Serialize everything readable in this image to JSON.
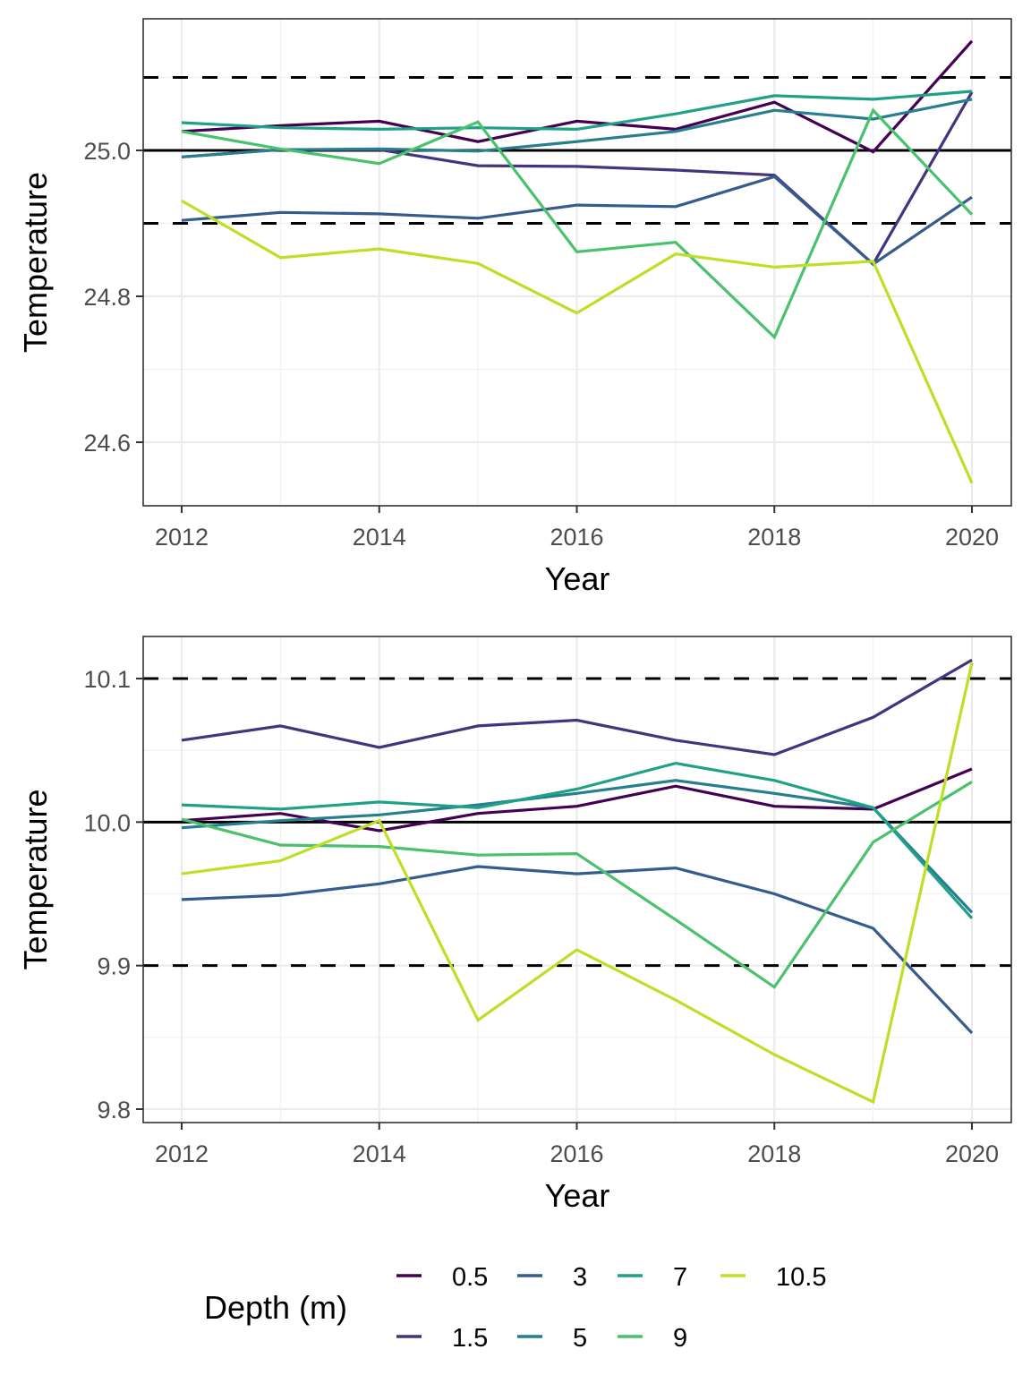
{
  "chart_data": [
    {
      "type": "line",
      "title": "",
      "xlabel": "Year",
      "ylabel": "Temperature",
      "xlim": [
        2011.8,
        2020.4
      ],
      "ylim": [
        24.52,
        25.187
      ],
      "x_ticks": [
        2012,
        2014,
        2016,
        2018,
        2020
      ],
      "x_tick_labels": [
        "2012",
        "2014",
        "2016",
        "2018",
        "2020"
      ],
      "y_ticks": [
        24.6,
        24.8,
        25.0
      ],
      "y_tick_labels": [
        "24.6",
        "24.8",
        "25.0"
      ],
      "grid": true,
      "reference_lines": [
        {
          "value": 25.1,
          "style": "dashed"
        },
        {
          "value": 25.0,
          "style": "solid"
        },
        {
          "value": 24.9,
          "style": "dashed"
        }
      ],
      "x": [
        2012,
        2013,
        2014,
        2015,
        2016,
        2017,
        2018,
        2019,
        2020
      ],
      "series": [
        {
          "name": "0.5",
          "color": "#440154",
          "values": [
            25.026,
            25.034,
            25.04,
            25.012,
            25.04,
            25.029,
            25.066,
            24.998,
            25.15
          ]
        },
        {
          "name": "1.5",
          "color": "#46337e",
          "values": [
            24.991,
            25.001,
            25.001,
            24.979,
            24.978,
            24.973,
            24.966,
            24.844,
            25.08
          ]
        },
        {
          "name": "3",
          "color": "#365c8d",
          "values": [
            24.904,
            24.915,
            24.913,
            24.907,
            24.925,
            24.923,
            24.964,
            24.844,
            24.936
          ]
        },
        {
          "name": "5",
          "color": "#277f8e",
          "values": [
            24.991,
            25.001,
            25.002,
            24.999,
            25.012,
            25.026,
            25.055,
            25.043,
            25.07
          ]
        },
        {
          "name": "7",
          "color": "#1fa187",
          "values": [
            25.038,
            25.031,
            25.029,
            25.031,
            25.029,
            25.05,
            25.075,
            25.07,
            25.081
          ]
        },
        {
          "name": "9",
          "color": "#4ac16d",
          "values": [
            25.026,
            25.002,
            24.982,
            25.039,
            24.861,
            24.874,
            24.744,
            25.055,
            24.912
          ]
        },
        {
          "name": "10.5",
          "color": "#bddf26",
          "values": [
            24.931,
            24.853,
            24.865,
            24.845,
            24.777,
            24.858,
            24.84,
            24.848,
            24.544
          ]
        }
      ]
    },
    {
      "type": "line",
      "title": "",
      "xlabel": "Year",
      "ylabel": "Temperature",
      "xlim": [
        2011.8,
        2020.4
      ],
      "ylim": [
        9.79,
        10.129
      ],
      "x_ticks": [
        2012,
        2014,
        2016,
        2018,
        2020
      ],
      "x_tick_labels": [
        "2012",
        "2014",
        "2016",
        "2018",
        "2020"
      ],
      "y_ticks": [
        9.8,
        9.9,
        10.0,
        10.1
      ],
      "y_tick_labels": [
        "9.8",
        "9.9",
        "10.0",
        "10.1"
      ],
      "grid": true,
      "reference_lines": [
        {
          "value": 10.1,
          "style": "dashed"
        },
        {
          "value": 10.0,
          "style": "solid"
        },
        {
          "value": 9.9,
          "style": "dashed"
        }
      ],
      "x": [
        2012,
        2013,
        2014,
        2015,
        2016,
        2017,
        2018,
        2019,
        2020
      ],
      "series": [
        {
          "name": "0.5",
          "color": "#440154",
          "values": [
            10.001,
            10.006,
            9.994,
            10.006,
            10.011,
            10.025,
            10.011,
            10.009,
            10.037
          ]
        },
        {
          "name": "1.5",
          "color": "#46337e",
          "values": [
            10.057,
            10.067,
            10.052,
            10.067,
            10.071,
            10.057,
            10.047,
            10.073,
            10.113
          ]
        },
        {
          "name": "3",
          "color": "#365c8d",
          "values": [
            9.946,
            9.949,
            9.957,
            9.969,
            9.964,
            9.968,
            9.95,
            9.926,
            9.853
          ]
        },
        {
          "name": "5",
          "color": "#277f8e",
          "values": [
            9.996,
            10.001,
            10.005,
            10.012,
            10.02,
            10.029,
            10.02,
            10.01,
            9.937
          ]
        },
        {
          "name": "7",
          "color": "#1fa187",
          "values": [
            10.012,
            10.009,
            10.014,
            10.01,
            10.023,
            10.041,
            10.029,
            10.01,
            9.933
          ]
        },
        {
          "name": "9",
          "color": "#4ac16d",
          "values": [
            10.002,
            9.984,
            9.983,
            9.977,
            9.978,
            9.932,
            9.885,
            9.986,
            10.028
          ]
        },
        {
          "name": "10.5",
          "color": "#bddf26",
          "values": [
            9.964,
            9.973,
            10.001,
            9.862,
            9.911,
            9.876,
            9.838,
            9.805,
            10.111
          ]
        }
      ]
    }
  ],
  "legend": {
    "title": "Depth (m)",
    "placement": "bottom",
    "items": [
      {
        "label": "0.5",
        "color": "#440154"
      },
      {
        "label": "1.5",
        "color": "#46337e"
      },
      {
        "label": "3",
        "color": "#365c8d"
      },
      {
        "label": "5",
        "color": "#277f8e"
      },
      {
        "label": "7",
        "color": "#1fa187"
      },
      {
        "label": "9",
        "color": "#4ac16d"
      },
      {
        "label": "10.5",
        "color": "#bddf26"
      }
    ]
  }
}
